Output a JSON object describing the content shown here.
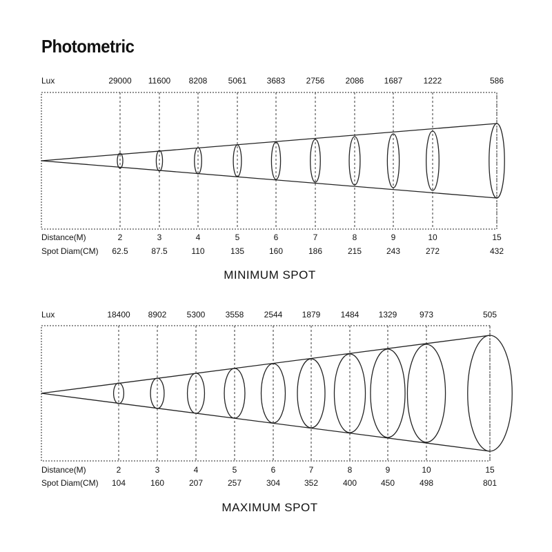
{
  "title": "Photometric",
  "labels": {
    "lux": "Lux",
    "distance": "Distance(M)",
    "spot_diam": "Spot Diam(CM)"
  },
  "panels": [
    {
      "caption": "MINIMUM SPOT",
      "distances": [
        "2",
        "3",
        "4",
        "5",
        "6",
        "7",
        "8",
        "9",
        "10",
        "15"
      ],
      "lux": [
        "29000",
        "11600",
        "8208",
        "5061",
        "3683",
        "2756",
        "2086",
        "1687",
        "1222",
        "586"
      ],
      "spot_diam": [
        "62.5",
        "87.5",
        "110",
        "135",
        "160",
        "186",
        "215",
        "243",
        "272",
        "432"
      ]
    },
    {
      "caption": "MAXIMUM SPOT",
      "distances": [
        "2",
        "3",
        "4",
        "5",
        "6",
        "7",
        "8",
        "9",
        "10",
        "15"
      ],
      "lux": [
        "18400",
        "8902",
        "5300",
        "3558",
        "2544",
        "1879",
        "1484",
        "1329",
        "973",
        "505"
      ],
      "spot_diam": [
        "104",
        "160",
        "207",
        "257",
        "304",
        "352",
        "400",
        "450",
        "498",
        "801"
      ]
    }
  ]
}
